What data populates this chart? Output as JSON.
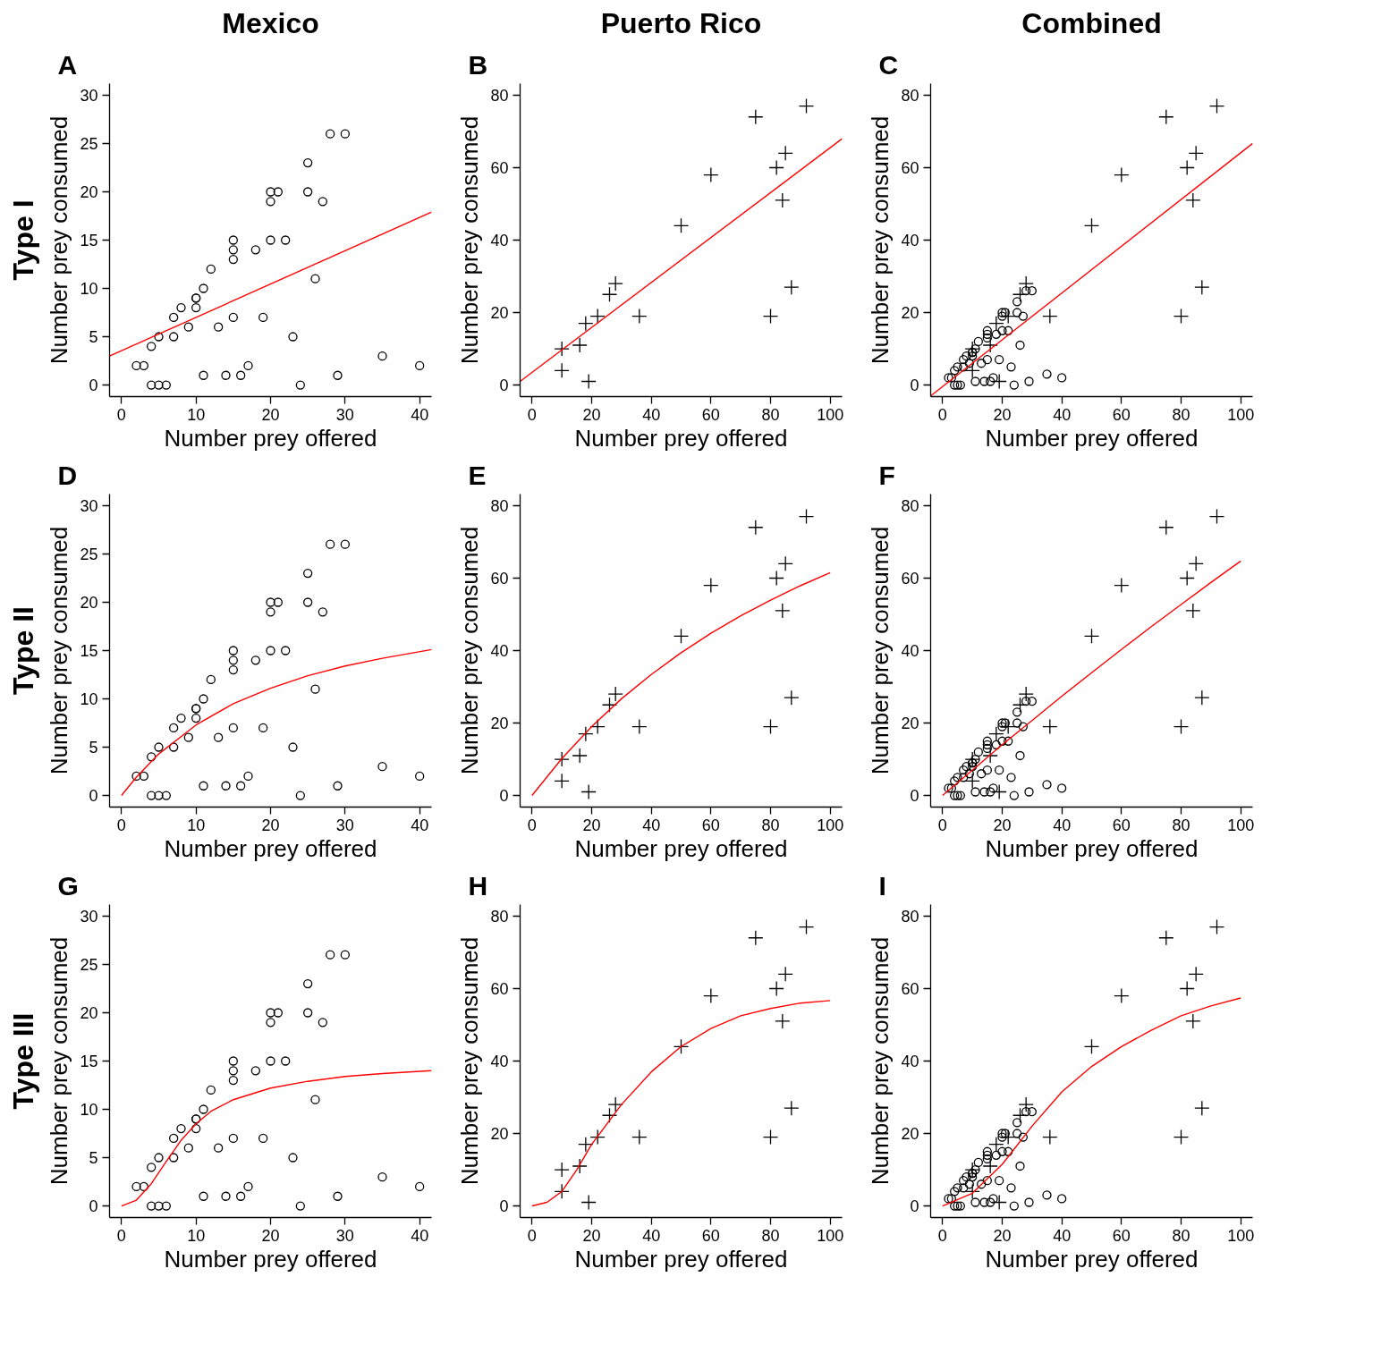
{
  "chart_data": [
    {
      "type": "scatter",
      "title": "Mexico",
      "subtitle": "A",
      "annotations": [
        "Type I"
      ],
      "xlabel": "Number prey offered",
      "ylabel": "Number prey consumed",
      "xlim": [
        -1.6,
        41.6
      ],
      "ylim": [
        -1.2,
        31.2
      ],
      "xticks": [
        0,
        10,
        20,
        30,
        40
      ],
      "yticks": [
        0,
        5,
        10,
        15,
        20,
        25,
        30
      ],
      "grid": false,
      "series": [
        {
          "marker": "circle",
          "color": "#000000",
          "x": [
            2,
            3,
            4,
            4,
            5,
            5,
            6,
            7,
            7,
            8,
            9,
            10,
            10,
            10,
            11,
            11,
            12,
            13,
            14,
            15,
            15,
            15,
            15,
            16,
            17,
            18,
            19,
            20,
            20,
            20,
            21,
            22,
            23,
            24,
            25,
            25,
            26,
            27,
            28,
            29,
            30,
            35,
            40
          ],
          "values": [
            2,
            2,
            4,
            0,
            0,
            5,
            0,
            5,
            7,
            8,
            6,
            8,
            9,
            9,
            10,
            1,
            12,
            6,
            1,
            15,
            14,
            13,
            7,
            1,
            2,
            14,
            7,
            15,
            19,
            20,
            20,
            15,
            5,
            0,
            23,
            20,
            11,
            19,
            26,
            1,
            26,
            3,
            2
          ]
        },
        {
          "type": "line",
          "color": "#ff0000",
          "x": [
            -1.6,
            41.6
          ],
          "values": [
            3.0,
            17.9
          ]
        }
      ]
    },
    {
      "type": "scatter",
      "title": "Puerto Rico",
      "subtitle": "B",
      "xlabel": "Number prey offered",
      "ylabel": "Number prey consumed",
      "xlim": [
        -4,
        104
      ],
      "ylim": [
        -3.2,
        83.2
      ],
      "xticks": [
        0,
        20,
        40,
        60,
        80,
        100
      ],
      "yticks": [
        0,
        20,
        40,
        60,
        80
      ],
      "grid": false,
      "series": [
        {
          "type": "scatter",
          "marker": "cross",
          "color": "#000000",
          "x": [
            10,
            10,
            16,
            18,
            19,
            22,
            26,
            28,
            36,
            50,
            60,
            75,
            80,
            82,
            84,
            85,
            87,
            92
          ],
          "values": [
            10,
            4,
            11,
            17,
            1,
            19,
            25,
            28,
            19,
            44,
            58,
            74,
            19,
            60,
            51,
            64,
            27,
            77
          ]
        },
        {
          "type": "line",
          "color": "#ff0000",
          "x": [
            -4,
            104
          ],
          "values": [
            1.0,
            68.0
          ]
        }
      ]
    },
    {
      "type": "scatter",
      "title": "Combined",
      "subtitle": "C",
      "xlabel": "Number prey offered",
      "ylabel": "Number prey consumed",
      "xlim": [
        -4,
        104
      ],
      "ylim": [
        -3.2,
        83.2
      ],
      "xticks": [
        0,
        20,
        40,
        60,
        80,
        100
      ],
      "yticks": [
        0,
        20,
        40,
        60,
        80
      ],
      "grid": false,
      "series": [
        {
          "type": "scatter",
          "marker": "circle",
          "color": "#000000",
          "x": [
            2,
            3,
            4,
            4,
            5,
            5,
            6,
            7,
            7,
            8,
            9,
            10,
            10,
            10,
            11,
            11,
            12,
            13,
            14,
            15,
            15,
            15,
            15,
            16,
            17,
            18,
            19,
            20,
            20,
            20,
            21,
            22,
            23,
            24,
            25,
            25,
            26,
            27,
            28,
            29,
            30,
            35,
            40
          ],
          "values": [
            2,
            2,
            4,
            0,
            0,
            5,
            0,
            5,
            7,
            8,
            6,
            8,
            9,
            9,
            10,
            1,
            12,
            6,
            1,
            15,
            14,
            13,
            7,
            1,
            2,
            14,
            7,
            15,
            19,
            20,
            20,
            15,
            5,
            0,
            23,
            20,
            11,
            19,
            26,
            1,
            26,
            3,
            2
          ]
        },
        {
          "type": "scatter",
          "marker": "cross",
          "color": "#000000",
          "x": [
            10,
            10,
            16,
            18,
            19,
            22,
            26,
            28,
            36,
            50,
            60,
            75,
            80,
            82,
            84,
            85,
            87,
            92
          ],
          "values": [
            10,
            4,
            11,
            17,
            1,
            19,
            25,
            28,
            19,
            44,
            58,
            74,
            19,
            60,
            51,
            64,
            27,
            77
          ]
        },
        {
          "type": "line",
          "color": "#ff0000",
          "x": [
            -4,
            104
          ],
          "values": [
            -3.0,
            66.7
          ]
        }
      ]
    },
    {
      "type": "scatter",
      "subtitle": "D",
      "annotations": [
        "Type II"
      ],
      "xlabel": "Number prey offered",
      "ylabel": "Number prey consumed",
      "xlim": [
        -1.6,
        41.6
      ],
      "ylim": [
        -1.2,
        31.2
      ],
      "xticks": [
        0,
        10,
        20,
        30,
        40
      ],
      "yticks": [
        0,
        5,
        10,
        15,
        20,
        25,
        30
      ],
      "grid": false,
      "series": [
        {
          "type": "scatter",
          "marker": "circle",
          "color": "#000000",
          "x": [
            2,
            3,
            4,
            4,
            5,
            5,
            6,
            7,
            7,
            8,
            9,
            10,
            10,
            10,
            11,
            11,
            12,
            13,
            14,
            15,
            15,
            15,
            15,
            16,
            17,
            18,
            19,
            20,
            20,
            20,
            21,
            22,
            23,
            24,
            25,
            25,
            26,
            27,
            28,
            29,
            30,
            35,
            40
          ],
          "values": [
            2,
            2,
            4,
            0,
            0,
            5,
            0,
            5,
            7,
            8,
            6,
            8,
            9,
            9,
            10,
            1,
            12,
            6,
            1,
            15,
            14,
            13,
            7,
            1,
            2,
            14,
            7,
            15,
            19,
            20,
            20,
            15,
            5,
            0,
            23,
            20,
            11,
            19,
            26,
            1,
            26,
            3,
            2
          ]
        },
        {
          "type": "line",
          "color": "#ff0000",
          "x": [
            0,
            2,
            5,
            10,
            15,
            20,
            25,
            30,
            35,
            41.6
          ],
          "values": [
            0,
            1.9,
            4.3,
            7.3,
            9.5,
            11.1,
            12.4,
            13.4,
            14.2,
            15.1
          ]
        }
      ]
    },
    {
      "type": "scatter",
      "subtitle": "E",
      "xlabel": "Number prey offered",
      "ylabel": "Number prey consumed",
      "xlim": [
        -4,
        104
      ],
      "ylim": [
        -3.2,
        83.2
      ],
      "xticks": [
        0,
        20,
        40,
        60,
        80,
        100
      ],
      "yticks": [
        0,
        20,
        40,
        60,
        80
      ],
      "grid": false,
      "series": [
        {
          "type": "scatter",
          "marker": "cross",
          "color": "#000000",
          "x": [
            10,
            10,
            16,
            18,
            19,
            22,
            26,
            28,
            36,
            50,
            60,
            75,
            80,
            82,
            84,
            85,
            87,
            92
          ],
          "values": [
            10,
            4,
            11,
            17,
            1,
            19,
            25,
            28,
            19,
            44,
            58,
            74,
            19,
            60,
            51,
            64,
            27,
            77
          ]
        },
        {
          "type": "line",
          "color": "#ff0000",
          "x": [
            0,
            10,
            20,
            30,
            40,
            50,
            60,
            70,
            80,
            90,
            100
          ],
          "values": [
            0,
            10.2,
            19.0,
            26.7,
            33.4,
            39.4,
            44.8,
            49.6,
            53.9,
            57.9,
            61.5
          ]
        }
      ]
    },
    {
      "type": "scatter",
      "subtitle": "F",
      "xlabel": "Number prey offered",
      "ylabel": "Number prey consumed",
      "xlim": [
        -4,
        104
      ],
      "ylim": [
        -3.2,
        83.2
      ],
      "xticks": [
        0,
        20,
        40,
        60,
        80,
        100
      ],
      "yticks": [
        0,
        20,
        40,
        60,
        80
      ],
      "grid": false,
      "series": [
        {
          "type": "scatter",
          "marker": "circle",
          "color": "#000000",
          "x": [
            2,
            3,
            4,
            4,
            5,
            5,
            6,
            7,
            7,
            8,
            9,
            10,
            10,
            10,
            11,
            11,
            12,
            13,
            14,
            15,
            15,
            15,
            15,
            16,
            17,
            18,
            19,
            20,
            20,
            20,
            21,
            22,
            23,
            24,
            25,
            25,
            26,
            27,
            28,
            29,
            30,
            35,
            40
          ],
          "values": [
            2,
            2,
            4,
            0,
            0,
            5,
            0,
            5,
            7,
            8,
            6,
            8,
            9,
            9,
            10,
            1,
            12,
            6,
            1,
            15,
            14,
            13,
            7,
            1,
            2,
            14,
            7,
            15,
            19,
            20,
            20,
            15,
            5,
            0,
            23,
            20,
            11,
            19,
            26,
            1,
            26,
            3,
            2
          ]
        },
        {
          "type": "scatter",
          "marker": "cross",
          "color": "#000000",
          "x": [
            10,
            10,
            16,
            18,
            19,
            22,
            26,
            28,
            36,
            50,
            60,
            75,
            80,
            82,
            84,
            85,
            87,
            92
          ],
          "values": [
            10,
            4,
            11,
            17,
            1,
            19,
            25,
            28,
            19,
            44,
            58,
            74,
            19,
            60,
            51,
            64,
            27,
            77
          ]
        },
        {
          "type": "line",
          "color": "#ff0000",
          "x": [
            0,
            10,
            20,
            30,
            40,
            50,
            60,
            70,
            80,
            90,
            100
          ],
          "values": [
            0,
            7.0,
            14.0,
            20.7,
            27.4,
            33.9,
            40.3,
            46.6,
            52.7,
            58.8,
            64.7
          ]
        }
      ]
    },
    {
      "type": "scatter",
      "subtitle": "G",
      "annotations": [
        "Type III"
      ],
      "xlabel": "Number prey offered",
      "ylabel": "Number prey consumed",
      "xlim": [
        -1.6,
        41.6
      ],
      "ylim": [
        -1.2,
        31.2
      ],
      "xticks": [
        0,
        10,
        20,
        30,
        40
      ],
      "yticks": [
        0,
        5,
        10,
        15,
        20,
        25,
        30
      ],
      "grid": false,
      "series": [
        {
          "type": "scatter",
          "marker": "circle",
          "color": "#000000",
          "x": [
            2,
            3,
            4,
            4,
            5,
            5,
            6,
            7,
            7,
            8,
            9,
            10,
            10,
            10,
            11,
            11,
            12,
            13,
            14,
            15,
            15,
            15,
            15,
            16,
            17,
            18,
            19,
            20,
            20,
            20,
            21,
            22,
            23,
            24,
            25,
            25,
            26,
            27,
            28,
            29,
            30,
            35,
            40
          ],
          "values": [
            2,
            2,
            4,
            0,
            0,
            5,
            0,
            5,
            7,
            8,
            6,
            8,
            9,
            9,
            10,
            1,
            12,
            6,
            1,
            15,
            14,
            13,
            7,
            1,
            2,
            14,
            7,
            15,
            19,
            20,
            20,
            15,
            5,
            0,
            23,
            20,
            11,
            19,
            26,
            1,
            26,
            3,
            2
          ]
        },
        {
          "type": "line",
          "color": "#ff0000",
          "x": [
            0,
            2,
            4,
            6,
            8,
            10,
            12,
            15,
            20,
            25,
            30,
            35,
            41.6
          ],
          "values": [
            0,
            0.6,
            2.3,
            4.6,
            6.8,
            8.5,
            9.8,
            11.0,
            12.2,
            12.9,
            13.4,
            13.7,
            14.0
          ]
        }
      ]
    },
    {
      "type": "scatter",
      "subtitle": "H",
      "xlabel": "Number prey offered",
      "ylabel": "Number prey consumed",
      "xlim": [
        -4,
        104
      ],
      "ylim": [
        -3.2,
        83.2
      ],
      "xticks": [
        0,
        20,
        40,
        60,
        80,
        100
      ],
      "yticks": [
        0,
        20,
        40,
        60,
        80
      ],
      "grid": false,
      "series": [
        {
          "type": "scatter",
          "marker": "cross",
          "color": "#000000",
          "x": [
            10,
            10,
            16,
            18,
            19,
            22,
            26,
            28,
            36,
            50,
            60,
            75,
            80,
            82,
            84,
            85,
            87,
            92
          ],
          "values": [
            10,
            4,
            11,
            17,
            1,
            19,
            25,
            28,
            19,
            44,
            58,
            74,
            19,
            60,
            51,
            64,
            27,
            77
          ]
        },
        {
          "type": "line",
          "color": "#ff0000",
          "x": [
            0,
            5,
            10,
            15,
            20,
            30,
            40,
            50,
            60,
            70,
            80,
            90,
            100
          ],
          "values": [
            0,
            1,
            4,
            10,
            17,
            28,
            37,
            44,
            49,
            52.5,
            54.5,
            56,
            56.7
          ]
        }
      ]
    },
    {
      "type": "scatter",
      "subtitle": "I",
      "xlabel": "Number prey offered",
      "ylabel": "Number prey consumed",
      "xlim": [
        -4,
        104
      ],
      "ylim": [
        -3.2,
        83.2
      ],
      "xticks": [
        0,
        20,
        40,
        60,
        80,
        100
      ],
      "yticks": [
        0,
        20,
        40,
        60,
        80
      ],
      "grid": false,
      "series": [
        {
          "type": "scatter",
          "marker": "circle",
          "color": "#000000",
          "x": [
            2,
            3,
            4,
            4,
            5,
            5,
            6,
            7,
            7,
            8,
            9,
            10,
            10,
            10,
            11,
            11,
            12,
            13,
            14,
            15,
            15,
            15,
            15,
            16,
            17,
            18,
            19,
            20,
            20,
            20,
            21,
            22,
            23,
            24,
            25,
            25,
            26,
            27,
            28,
            29,
            30,
            35,
            40
          ],
          "values": [
            2,
            2,
            4,
            0,
            0,
            5,
            0,
            5,
            7,
            8,
            6,
            8,
            9,
            9,
            10,
            1,
            12,
            6,
            1,
            15,
            14,
            13,
            7,
            1,
            2,
            14,
            7,
            15,
            19,
            20,
            20,
            15,
            5,
            0,
            23,
            20,
            11,
            19,
            26,
            1,
            26,
            3,
            2
          ]
        },
        {
          "type": "scatter",
          "marker": "cross",
          "color": "#000000",
          "x": [
            10,
            10,
            16,
            18,
            19,
            22,
            26,
            28,
            36,
            50,
            60,
            75,
            80,
            82,
            84,
            85,
            87,
            92
          ],
          "values": [
            10,
            4,
            11,
            17,
            1,
            19,
            25,
            28,
            19,
            44,
            58,
            74,
            19,
            60,
            51,
            64,
            27,
            77
          ]
        },
        {
          "type": "line",
          "color": "#ff0000",
          "x": [
            0,
            10,
            20,
            30,
            40,
            50,
            60,
            70,
            80,
            90,
            100
          ],
          "values": [
            0,
            3.5,
            11.5,
            22,
            31.5,
            38.5,
            44,
            48.5,
            52.5,
            55.2,
            57.4
          ]
        }
      ]
    }
  ]
}
